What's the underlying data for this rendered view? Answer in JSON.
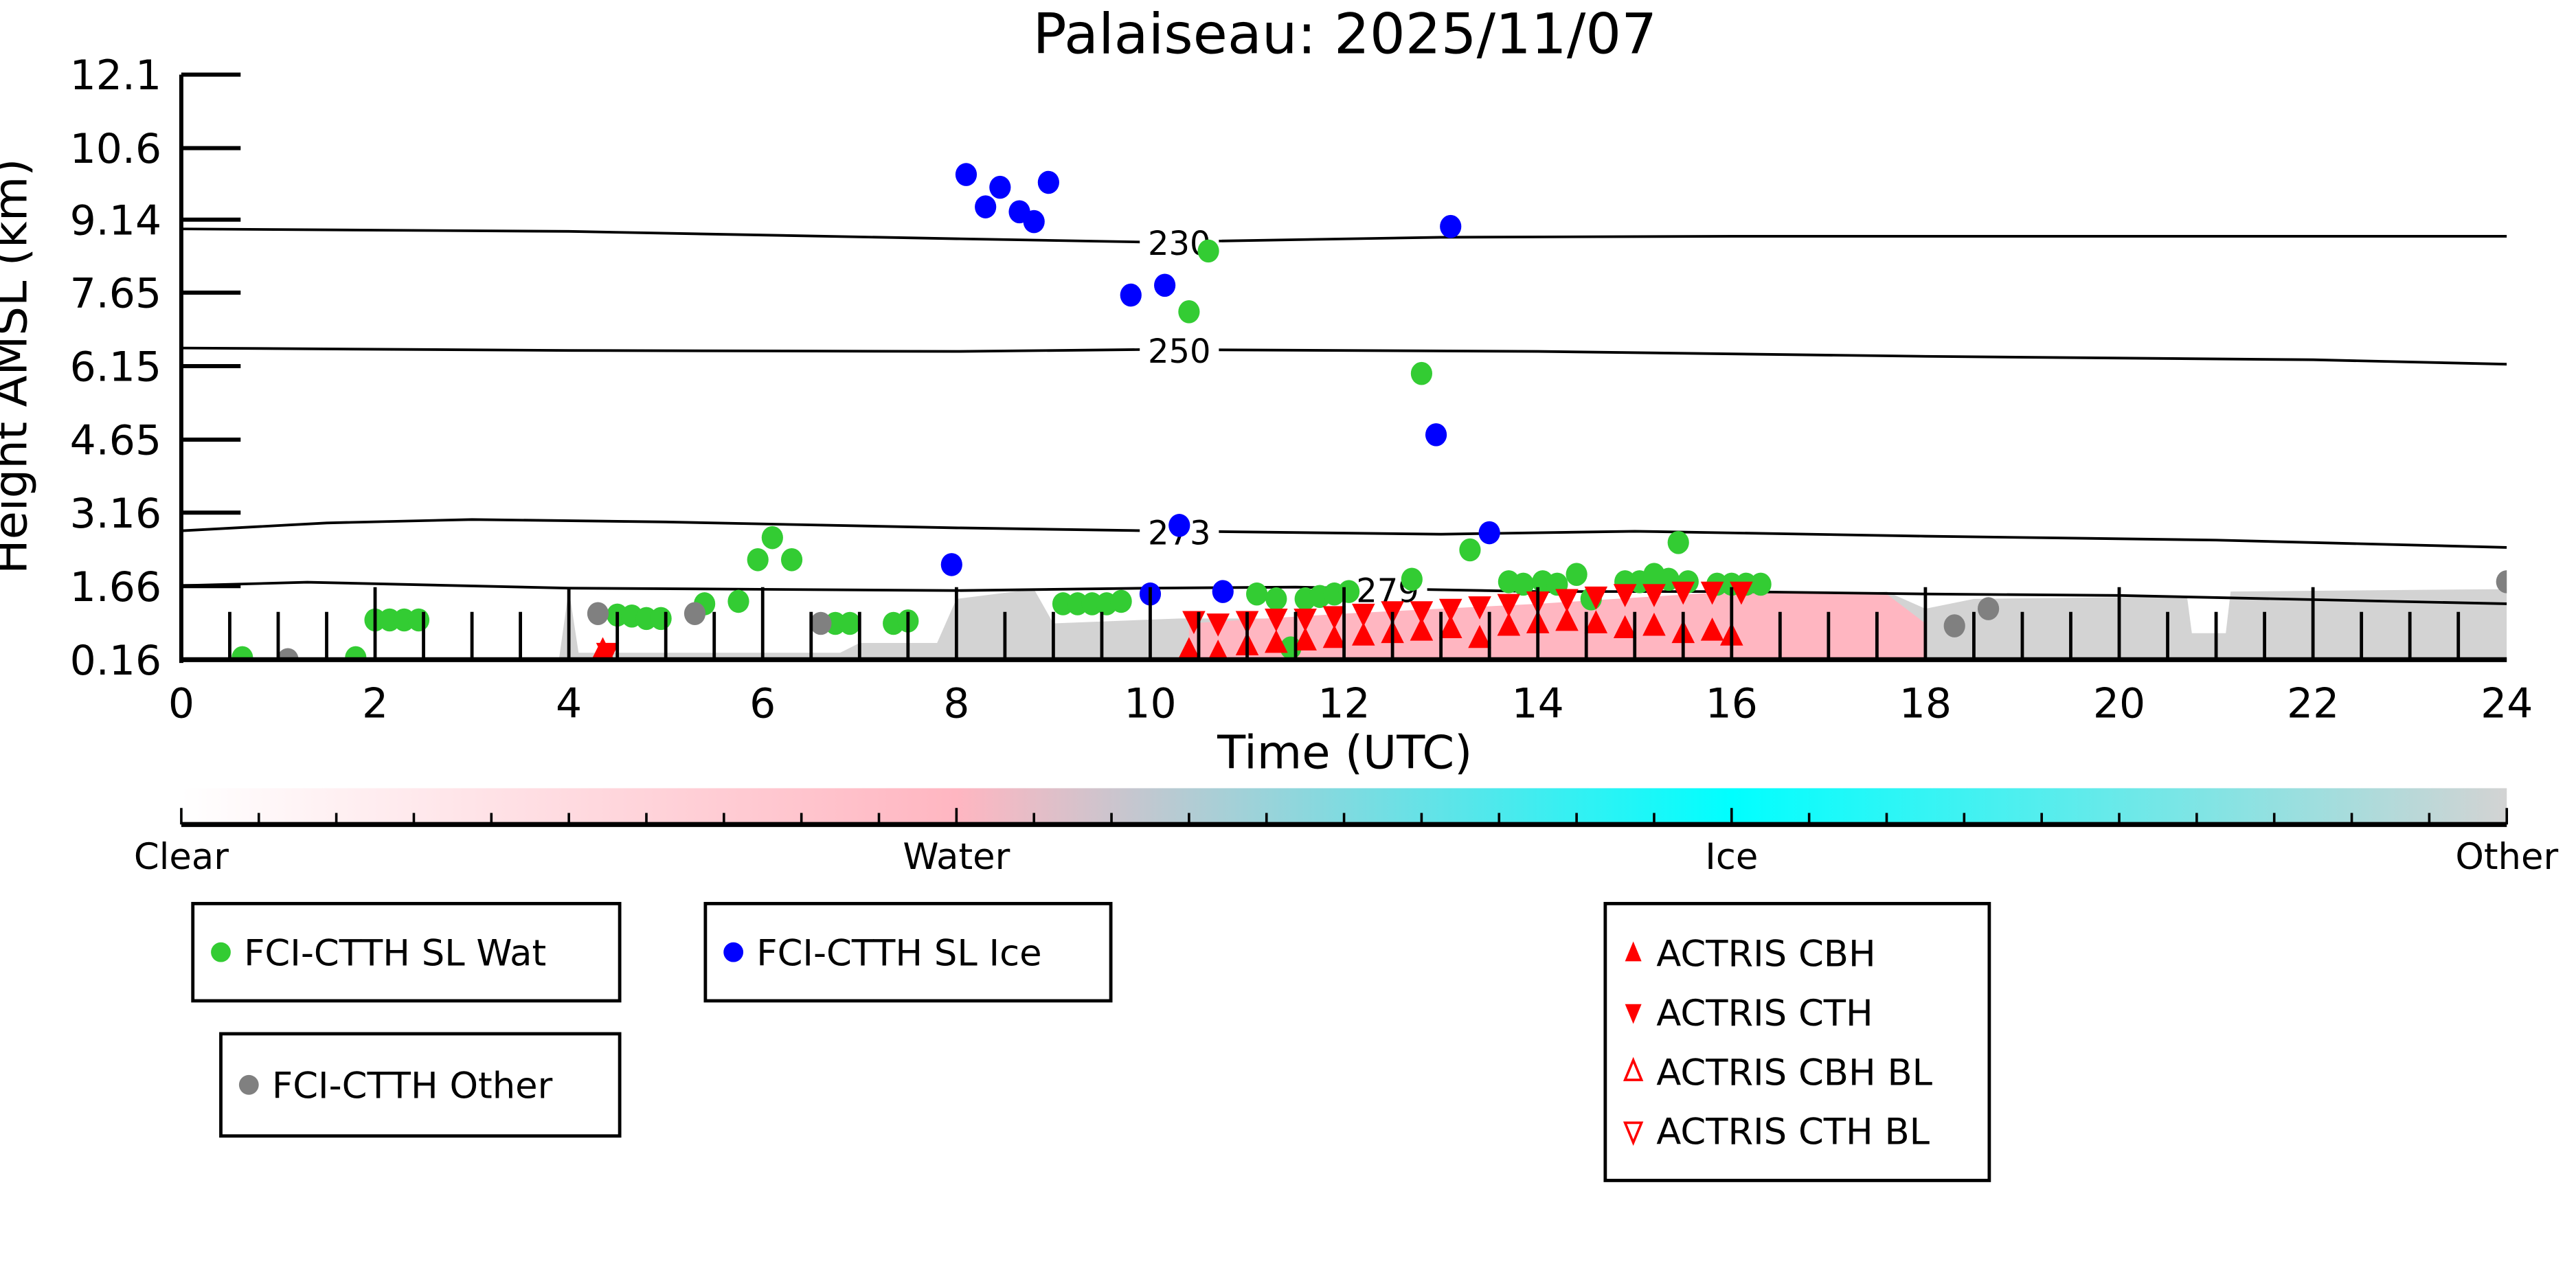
{
  "chart_data": {
    "type": "scatter",
    "title": "Palaiseau: 2025/11/07",
    "xlabel": "Time (UTC)",
    "ylabel": "Height AMSL (km)",
    "xlim": [
      0,
      24
    ],
    "ylim": [
      0.16,
      12.1
    ],
    "xticks": [
      0,
      2,
      4,
      6,
      8,
      10,
      12,
      14,
      16,
      18,
      20,
      22,
      24
    ],
    "yticks": [
      "0.16",
      "1.66",
      "3.16",
      "4.65",
      "6.15",
      "7.65",
      "9.14",
      "10.6",
      "12.1"
    ],
    "colorbar": {
      "labels": [
        "Clear",
        "Water",
        "Ice",
        "Other"
      ],
      "colors": [
        "#ffffff",
        "#ffb6c1",
        "#00ffff",
        "#d3d3d3"
      ]
    },
    "background_classification": {
      "other_color": "#d3d3d3",
      "water_color": "#ffb6c1",
      "other_top_km": [
        [
          0,
          0.2
        ],
        [
          3.9,
          0.2
        ],
        [
          4.0,
          1.6
        ],
        [
          4.1,
          0.3
        ],
        [
          6.8,
          0.3
        ],
        [
          7.0,
          0.5
        ],
        [
          7.8,
          0.5
        ],
        [
          8.0,
          1.4
        ],
        [
          8.8,
          1.6
        ],
        [
          9.0,
          0.9
        ],
        [
          10.3,
          1.0
        ],
        [
          12,
          1.0
        ],
        [
          14,
          1.2
        ],
        [
          16,
          1.35
        ],
        [
          17.6,
          1.55
        ],
        [
          18.0,
          1.2
        ],
        [
          18.5,
          1.4
        ],
        [
          20.7,
          1.45
        ],
        [
          20.75,
          0.7
        ],
        [
          21.1,
          0.7
        ],
        [
          21.15,
          1.55
        ],
        [
          24,
          1.6
        ]
      ],
      "water_top_km": [
        [
          10.4,
          0.9
        ],
        [
          12,
          1.1
        ],
        [
          14,
          1.3
        ],
        [
          16,
          1.55
        ],
        [
          17.6,
          1.5
        ],
        [
          18,
          0.9
        ]
      ]
    },
    "isotherms": [
      {
        "label": "230",
        "label_x": 10.3,
        "points": [
          [
            0,
            8.95
          ],
          [
            4,
            8.9
          ],
          [
            8,
            8.75
          ],
          [
            10,
            8.68
          ],
          [
            13,
            8.78
          ],
          [
            16,
            8.8
          ],
          [
            20,
            8.8
          ],
          [
            24,
            8.8
          ]
        ]
      },
      {
        "label": "250",
        "label_x": 10.3,
        "points": [
          [
            0,
            6.52
          ],
          [
            4,
            6.47
          ],
          [
            8,
            6.45
          ],
          [
            10,
            6.49
          ],
          [
            14,
            6.45
          ],
          [
            18,
            6.35
          ],
          [
            22,
            6.28
          ],
          [
            24,
            6.19
          ]
        ]
      },
      {
        "label": "273",
        "label_x": 10.3,
        "points": [
          [
            0,
            2.79
          ],
          [
            1.5,
            2.95
          ],
          [
            3,
            3.02
          ],
          [
            5,
            2.97
          ],
          [
            8,
            2.85
          ],
          [
            10,
            2.79
          ],
          [
            13,
            2.72
          ],
          [
            15,
            2.78
          ],
          [
            18,
            2.68
          ],
          [
            21,
            2.6
          ],
          [
            24,
            2.45
          ]
        ]
      },
      {
        "label": "279",
        "label_x": 12.45,
        "points": [
          [
            0,
            1.67
          ],
          [
            1.3,
            1.74
          ],
          [
            4,
            1.62
          ],
          [
            8,
            1.57
          ],
          [
            10,
            1.62
          ],
          [
            11.5,
            1.64
          ],
          [
            14,
            1.55
          ],
          [
            16,
            1.55
          ],
          [
            18,
            1.5
          ],
          [
            20,
            1.47
          ],
          [
            24,
            1.3
          ]
        ]
      }
    ],
    "series": [
      {
        "name": "FCI-CTTH SL Wat",
        "color": "#33cc33",
        "marker": "circle",
        "points": [
          [
            0.63,
            0.2
          ],
          [
            1.8,
            0.2
          ],
          [
            2.0,
            0.97
          ],
          [
            2.15,
            0.97
          ],
          [
            2.3,
            0.97
          ],
          [
            2.45,
            0.97
          ],
          [
            4.5,
            1.07
          ],
          [
            4.65,
            1.05
          ],
          [
            4.8,
            1.0
          ],
          [
            4.95,
            1.0
          ],
          [
            5.4,
            1.3
          ],
          [
            5.75,
            1.35
          ],
          [
            5.95,
            2.2
          ],
          [
            6.1,
            2.65
          ],
          [
            6.3,
            2.2
          ],
          [
            6.75,
            0.9
          ],
          [
            6.9,
            0.9
          ],
          [
            7.35,
            0.9
          ],
          [
            7.5,
            0.95
          ],
          [
            9.1,
            1.3
          ],
          [
            9.25,
            1.3
          ],
          [
            9.4,
            1.3
          ],
          [
            9.55,
            1.3
          ],
          [
            9.7,
            1.35
          ],
          [
            10.4,
            7.26
          ],
          [
            10.6,
            8.5
          ],
          [
            11.1,
            1.5
          ],
          [
            11.3,
            1.4
          ],
          [
            11.45,
            0.4
          ],
          [
            11.6,
            1.4
          ],
          [
            11.75,
            1.45
          ],
          [
            11.9,
            1.5
          ],
          [
            12.05,
            1.55
          ],
          [
            12.7,
            1.8
          ],
          [
            12.8,
            6.0
          ],
          [
            13.3,
            2.4
          ],
          [
            13.7,
            1.75
          ],
          [
            13.85,
            1.7
          ],
          [
            14.05,
            1.75
          ],
          [
            14.2,
            1.7
          ],
          [
            14.4,
            1.9
          ],
          [
            14.55,
            1.4
          ],
          [
            14.9,
            1.75
          ],
          [
            15.05,
            1.75
          ],
          [
            15.2,
            1.9
          ],
          [
            15.35,
            1.8
          ],
          [
            15.45,
            2.55
          ],
          [
            15.55,
            1.75
          ],
          [
            15.85,
            1.7
          ],
          [
            16.0,
            1.7
          ],
          [
            16.15,
            1.7
          ],
          [
            16.3,
            1.7
          ]
        ]
      },
      {
        "name": "FCI-CTTH SL Ice",
        "color": "#0000ff",
        "marker": "circle",
        "points": [
          [
            7.95,
            2.1
          ],
          [
            8.1,
            10.06
          ],
          [
            8.3,
            9.4
          ],
          [
            8.45,
            9.8
          ],
          [
            8.65,
            9.3
          ],
          [
            8.8,
            9.1
          ],
          [
            8.95,
            9.9
          ],
          [
            9.8,
            7.6
          ],
          [
            10.0,
            1.5
          ],
          [
            10.15,
            7.8
          ],
          [
            10.3,
            2.9
          ],
          [
            10.75,
            1.55
          ],
          [
            12.95,
            4.75
          ],
          [
            13.1,
            9.0
          ],
          [
            13.5,
            2.75
          ]
        ]
      },
      {
        "name": "FCI-CTTH Other",
        "color": "#808080",
        "marker": "circle",
        "points": [
          [
            1.1,
            0.16
          ],
          [
            4.3,
            1.1
          ],
          [
            5.3,
            1.1
          ],
          [
            6.6,
            0.9
          ],
          [
            18.3,
            0.85
          ],
          [
            18.65,
            1.2
          ],
          [
            24.0,
            1.75
          ]
        ]
      },
      {
        "name": "ACTRIS CBH",
        "color": "#ff0000",
        "marker": "triangle-up",
        "points": [
          [
            4.35,
            0.35
          ],
          [
            10.4,
            0.35
          ],
          [
            10.7,
            0.3
          ],
          [
            11.0,
            0.45
          ],
          [
            11.3,
            0.5
          ],
          [
            11.6,
            0.55
          ],
          [
            11.9,
            0.6
          ],
          [
            12.2,
            0.65
          ],
          [
            12.5,
            0.7
          ],
          [
            12.8,
            0.75
          ],
          [
            13.1,
            0.8
          ],
          [
            13.4,
            0.6
          ],
          [
            13.7,
            0.85
          ],
          [
            14.0,
            0.9
          ],
          [
            14.3,
            0.95
          ],
          [
            14.6,
            0.9
          ],
          [
            14.9,
            0.8
          ],
          [
            15.2,
            0.85
          ],
          [
            15.5,
            0.7
          ],
          [
            15.8,
            0.75
          ],
          [
            16.0,
            0.65
          ]
        ]
      },
      {
        "name": "ACTRIS CTH",
        "color": "#ff0000",
        "marker": "triangle-down",
        "points": [
          [
            4.4,
            0.3
          ],
          [
            10.45,
            0.95
          ],
          [
            10.7,
            0.9
          ],
          [
            11.0,
            0.95
          ],
          [
            11.3,
            1.0
          ],
          [
            11.6,
            1.0
          ],
          [
            11.9,
            1.05
          ],
          [
            12.2,
            1.1
          ],
          [
            12.5,
            1.15
          ],
          [
            12.8,
            1.15
          ],
          [
            13.1,
            1.2
          ],
          [
            13.4,
            1.25
          ],
          [
            13.7,
            1.3
          ],
          [
            14.0,
            1.35
          ],
          [
            14.3,
            1.4
          ],
          [
            14.6,
            1.45
          ],
          [
            14.9,
            1.5
          ],
          [
            15.2,
            1.5
          ],
          [
            15.5,
            1.55
          ],
          [
            15.8,
            1.55
          ],
          [
            16.1,
            1.55
          ]
        ]
      },
      {
        "name": "ACTRIS CBH BL",
        "color": "#ff0000",
        "marker": "triangle-up-open",
        "points": []
      },
      {
        "name": "ACTRIS CTH BL",
        "color": "#ff0000",
        "marker": "triangle-down-open",
        "points": []
      }
    ]
  }
}
